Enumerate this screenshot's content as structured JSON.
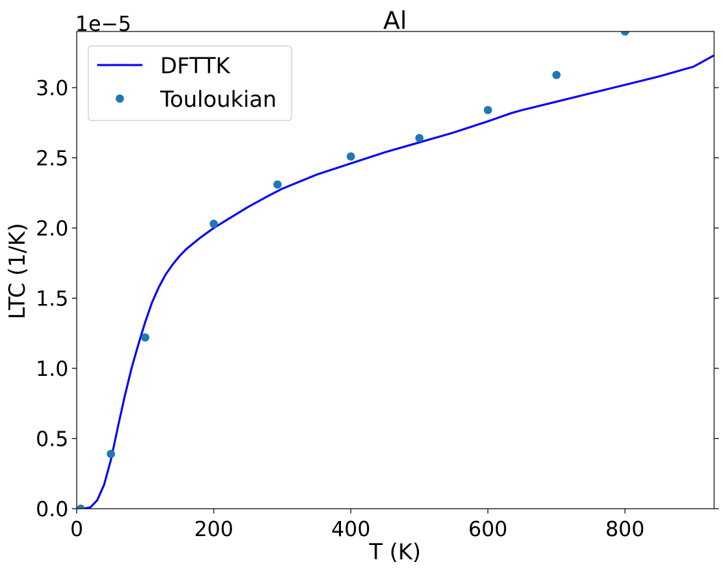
{
  "chart_data": {
    "type": "line",
    "title": "Al",
    "xlabel": "T (K)",
    "ylabel": "LTC (1/K)",
    "y_offset_text": "1e−5",
    "xlim": [
      0,
      930
    ],
    "ylim": [
      0,
      3.4
    ],
    "y_scale_factor": 1e-05,
    "x_ticks": [
      0,
      200,
      400,
      600,
      800
    ],
    "x_tick_labels": [
      "0",
      "200",
      "400",
      "600",
      "800"
    ],
    "y_ticks": [
      0.0,
      0.5,
      1.0,
      1.5,
      2.0,
      2.5,
      3.0
    ],
    "y_tick_labels": [
      "0.0",
      "0.5",
      "1.0",
      "1.5",
      "2.0",
      "2.5",
      "3.0"
    ],
    "grid": false,
    "legend_position": "top-left",
    "colors": {
      "line": "#0000ff",
      "markers": "#1f77b4"
    },
    "series": [
      {
        "name": "DFTTK",
        "style": "line",
        "x": [
          10,
          20,
          30,
          40,
          50,
          60,
          70,
          80,
          90,
          100,
          110,
          120,
          130,
          140,
          150,
          160,
          180,
          200,
          220,
          250,
          280,
          300,
          350,
          400,
          450,
          500,
          550,
          600,
          635,
          650,
          700,
          750,
          800,
          850,
          900,
          930
        ],
        "y": [
          0.0,
          0.01,
          0.06,
          0.17,
          0.35,
          0.58,
          0.8,
          1.0,
          1.17,
          1.33,
          1.47,
          1.58,
          1.67,
          1.74,
          1.8,
          1.85,
          1.93,
          2.0,
          2.06,
          2.15,
          2.23,
          2.28,
          2.38,
          2.46,
          2.54,
          2.61,
          2.68,
          2.76,
          2.82,
          2.84,
          2.9,
          2.96,
          3.02,
          3.08,
          3.15,
          3.23
        ]
      },
      {
        "name": "Touloukian",
        "style": "markers",
        "x": [
          6,
          50,
          100,
          200,
          293,
          400,
          500,
          600,
          700,
          800
        ],
        "y": [
          0.0,
          0.39,
          1.22,
          2.03,
          2.31,
          2.51,
          2.64,
          2.84,
          3.09,
          3.4
        ]
      }
    ]
  }
}
